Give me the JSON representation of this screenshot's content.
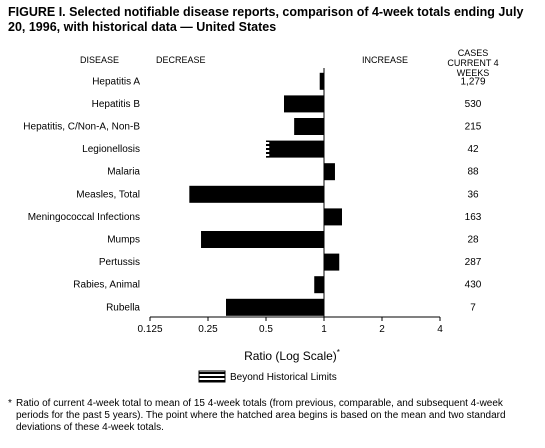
{
  "figure": {
    "title": "FIGURE I. Selected notifiable disease reports, comparison of 4-week totals ending July 20, 1996, with historical data — United States",
    "footnote_marker": "*",
    "footnote": "Ratio of current 4-week total to mean of 15 4-week totals (from previous, comparable, and subsequent 4-week periods for the past 5 years). The point where the hatched area begins is based on the mean and two standard deviations of these 4-week totals."
  },
  "chart_data": {
    "type": "bar",
    "orientation": "horizontal",
    "x_scale": "log2",
    "xlim": [
      0.125,
      4
    ],
    "baseline": 1,
    "col_disease": "DISEASE",
    "col_decrease": "DECREASE",
    "col_increase": "INCREASE",
    "col_cases": "CASES CURRENT 4 WEEKS",
    "xlabel": "Ratio (Log Scale)",
    "xlabel_marker": "*",
    "xticks": [
      0.125,
      0.25,
      0.5,
      1,
      2,
      4
    ],
    "xtick_labels": [
      "0.125",
      "0.25",
      "0.5",
      "1",
      "2",
      "4"
    ],
    "legend_label": "Beyond Historical Limits",
    "legend_position": "bottom-center",
    "categories": [
      "Hepatitis A",
      "Hepatitis B",
      "Hepatitis, C/Non-A, Non-B",
      "Legionellosis",
      "Malaria",
      "Measles, Total",
      "Meningococcal Infections",
      "Mumps",
      "Pertussis",
      "Rabies, Animal",
      "Rubella"
    ],
    "ratios": [
      0.95,
      0.62,
      0.7,
      0.5,
      1.14,
      0.2,
      1.24,
      0.23,
      1.2,
      0.89,
      0.31
    ],
    "beyond_limits_from": [
      null,
      null,
      null,
      0.52,
      null,
      null,
      null,
      null,
      null,
      null,
      null
    ],
    "cases": [
      "1,279",
      "530",
      "215",
      "42",
      "88",
      "36",
      "163",
      "28",
      "287",
      "430",
      "7"
    ],
    "bar_color": "#000000"
  }
}
